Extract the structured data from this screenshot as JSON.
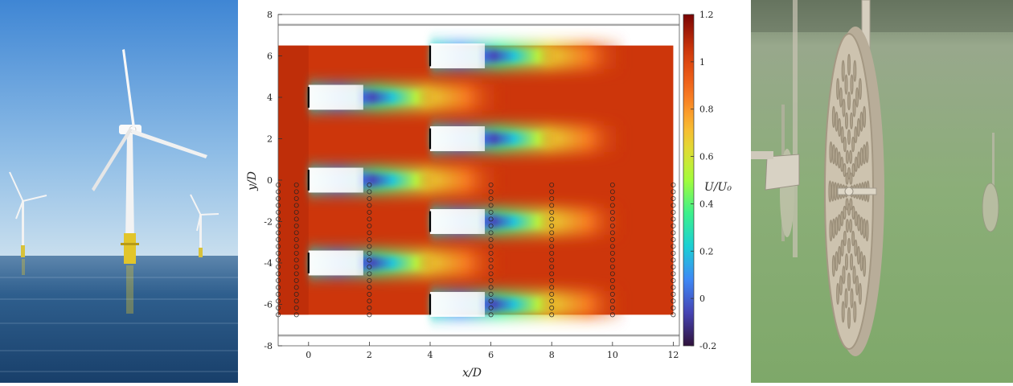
{
  "chart_data": {
    "type": "heatmap",
    "title": "",
    "xlabel": "x/D",
    "ylabel": "y/D",
    "colorbar_label": "U/U₀",
    "xlim": [
      -1,
      12.2
    ],
    "ylim": [
      -8,
      8
    ],
    "x_ticks": [
      0,
      2,
      4,
      6,
      8,
      10,
      12
    ],
    "y_ticks": [
      -8,
      -6,
      -4,
      -2,
      0,
      2,
      4,
      6,
      8
    ],
    "colorbar_ticks": [
      -0.2,
      0,
      0.2,
      0.4,
      0.6,
      0.8,
      1,
      1.2
    ],
    "colorbar_range": [
      -0.2,
      1.2
    ],
    "colormap": "turbo",
    "walls_y": [
      7.5,
      -7.5
    ],
    "field_extent": {
      "x": [
        -1,
        12
      ],
      "y": [
        -6.5,
        6.5
      ]
    },
    "freestream_velocity": 1.05,
    "turbines": [
      {
        "x": 0,
        "y": 4
      },
      {
        "x": 0,
        "y": 0
      },
      {
        "x": 0,
        "y": -4
      },
      {
        "x": 4,
        "y": 6
      },
      {
        "x": 4,
        "y": 2
      },
      {
        "x": 4,
        "y": -2
      },
      {
        "x": 4,
        "y": -6
      }
    ],
    "measurement_columns": [
      -1,
      -0.4,
      2,
      6,
      8,
      10,
      12
    ],
    "measurement_y": [
      -6.5,
      0
    ],
    "measurement_spacing": 0.33
  },
  "images": {
    "left_photo": "offshore-wind-farm-photo",
    "right_photo": "underwater-porous-disc-photo"
  },
  "colors": {
    "sky_top": "#4a8fd6",
    "sea": "#1c4a7a",
    "water_green": "#86a874",
    "wall": "#aaaaaa"
  }
}
